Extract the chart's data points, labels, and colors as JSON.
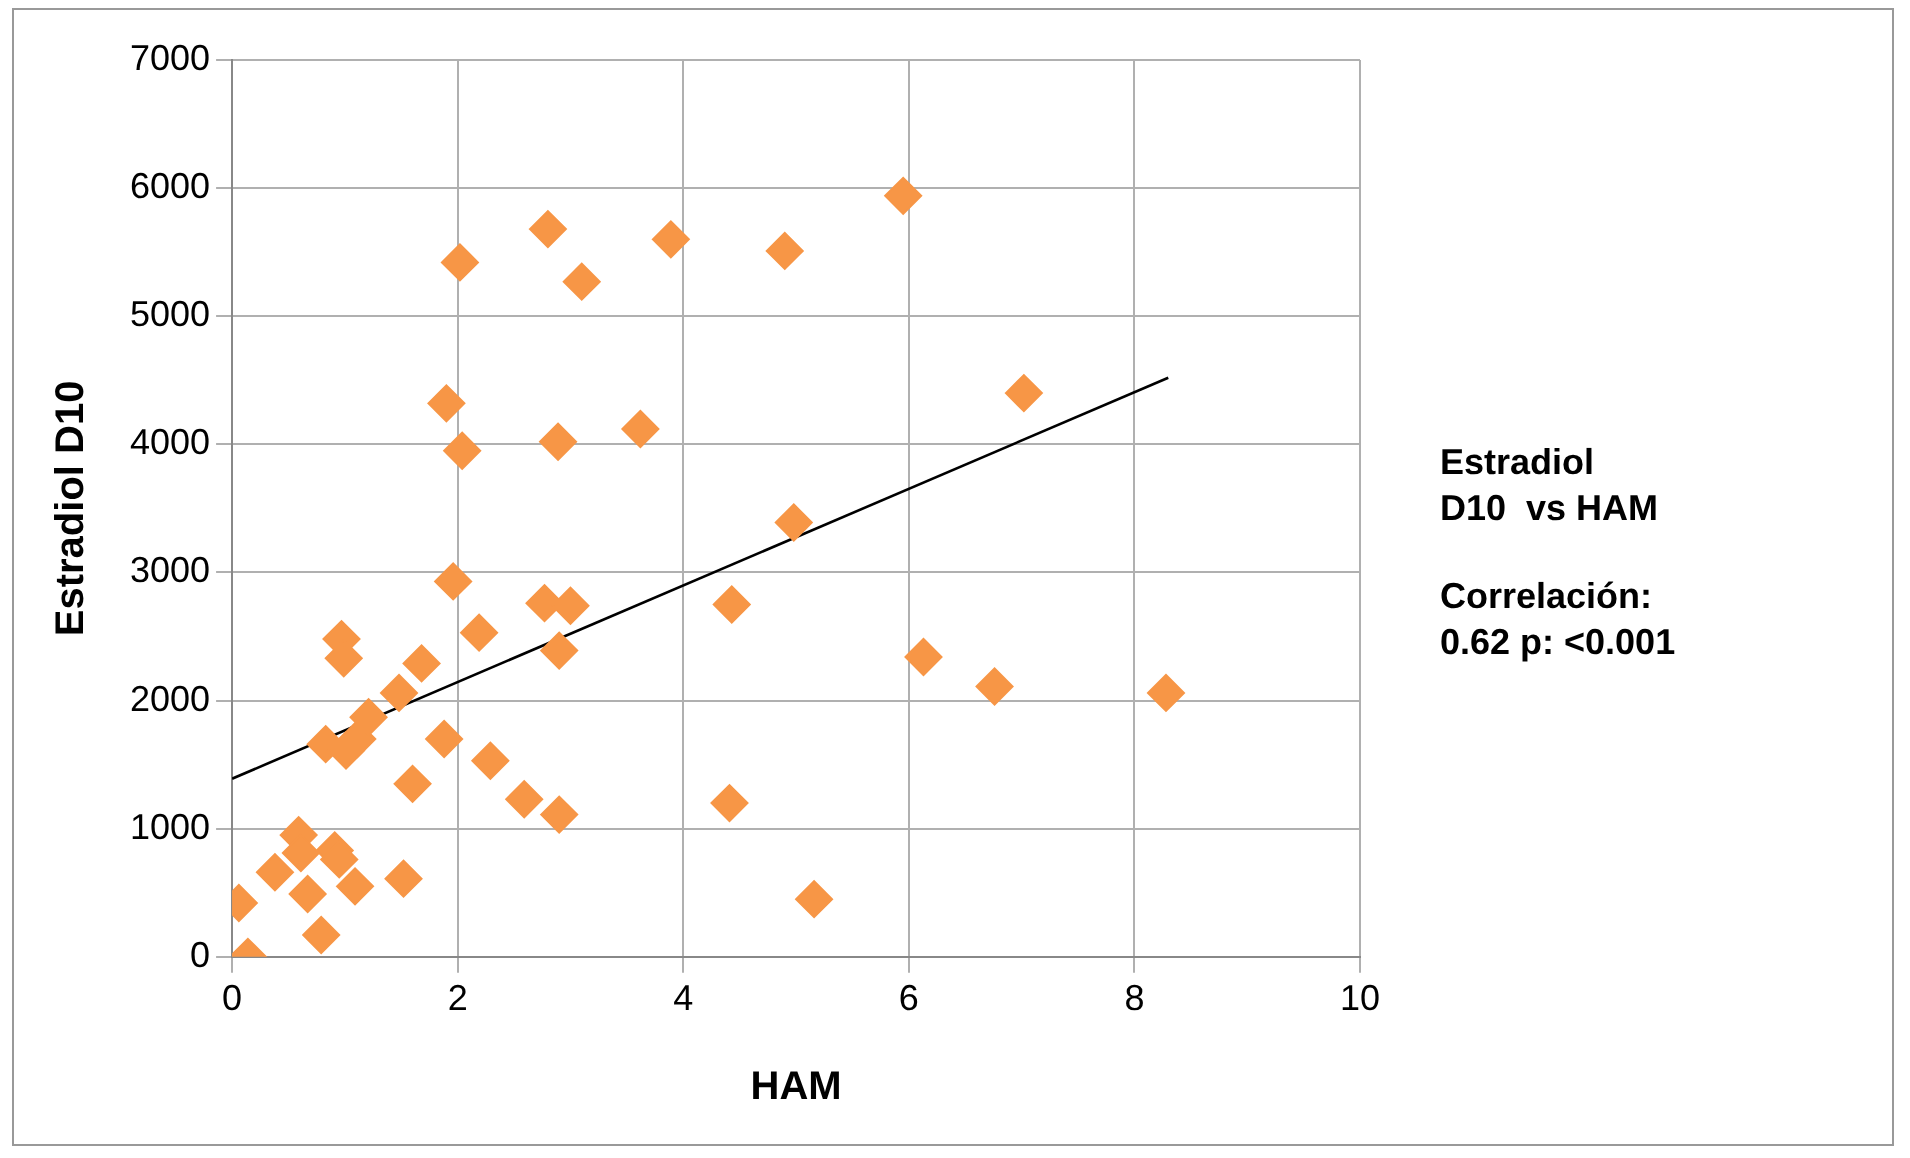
{
  "chart_data": {
    "type": "scatter",
    "xlabel": "HAM",
    "ylabel": "Estradiol D10",
    "xlim": [
      0,
      10
    ],
    "xticks": [
      0,
      2,
      4,
      6,
      8,
      10
    ],
    "ylim": [
      0,
      7000
    ],
    "yticks": [
      0,
      1000,
      2000,
      3000,
      4000,
      5000,
      6000,
      7000
    ],
    "grid": true,
    "legend": false,
    "marker": "diamond",
    "series": [
      {
        "color": "#f79646",
        "x": [
          0.06,
          0.14,
          0.38,
          0.59,
          0.67,
          0.61,
          0.79,
          0.91,
          0.95,
          1.09,
          1.52,
          0.83,
          1.01,
          1.11,
          1.21,
          1.48,
          1.6,
          1.68,
          1.88,
          2.29,
          2.59,
          2.9,
          0.97,
          0.99,
          2.19,
          2.9,
          2.77,
          3.0,
          1.96,
          2.02,
          2.8,
          3.1,
          3.89,
          4.9,
          5.95,
          1.9,
          2.04,
          2.89,
          3.62,
          4.98,
          7.02,
          4.43,
          6.13,
          6.76,
          8.28,
          4.41,
          5.16
        ],
        "values": [
          420,
          0,
          660,
          950,
          490,
          810,
          170,
          830,
          760,
          550,
          610,
          1660,
          1610,
          1700,
          1870,
          2060,
          1350,
          2290,
          1700,
          1530,
          1230,
          1110,
          2480,
          2330,
          2530,
          2390,
          2760,
          2740,
          2930,
          5420,
          5680,
          5270,
          5600,
          5510,
          5940,
          4320,
          3950,
          4020,
          4120,
          3390,
          4400,
          2750,
          2340,
          2110,
          2060,
          1200,
          450
        ]
      },
      {
        "type": "line",
        "color": "#000000",
        "marker": "none",
        "x": [
          0,
          8.3
        ],
        "values": [
          1390,
          4520
        ]
      }
    ],
    "annotations": [
      "Estradiol\nD10  vs HAM",
      "Correlación:\n0.62 p: <0.001"
    ]
  }
}
